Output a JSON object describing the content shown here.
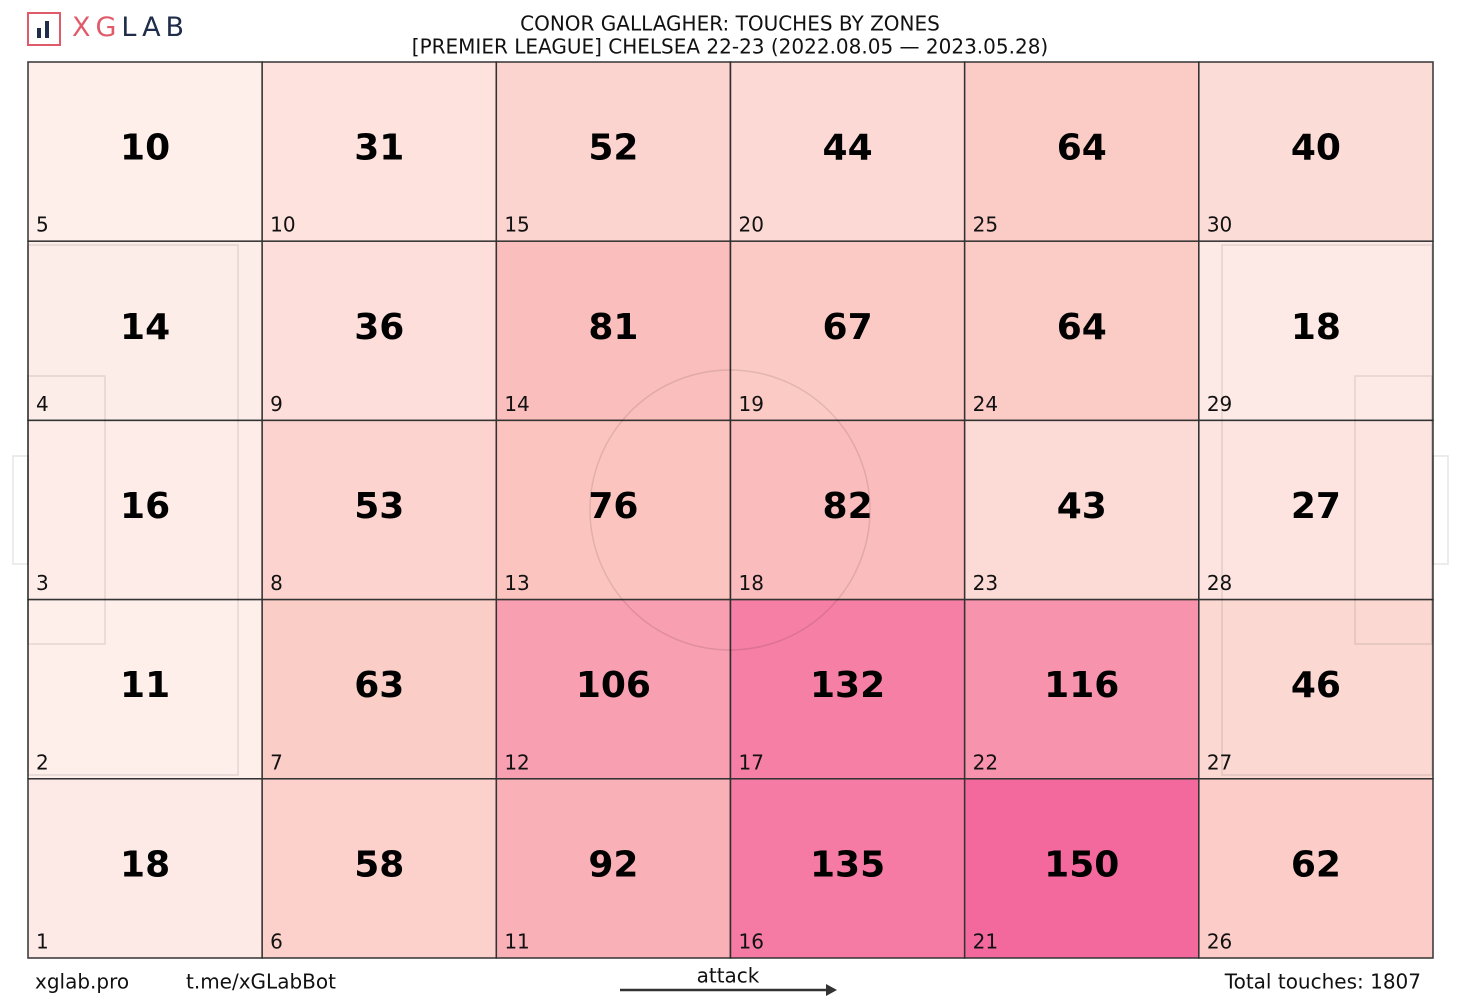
{
  "chart_data": {
    "type": "heatmap",
    "logo": "XGLAB",
    "title": "CONOR GALLAGHER: TOUCHES BY ZONES",
    "subtitle": "[PREMIER LEAGUE] CHELSEA 22-23 (2022.08.05 — 2023.05.28)",
    "values": [
      [
        10,
        31,
        52,
        44,
        64,
        40
      ],
      [
        14,
        36,
        81,
        67,
        64,
        18
      ],
      [
        16,
        53,
        76,
        82,
        43,
        27
      ],
      [
        11,
        63,
        106,
        132,
        116,
        46
      ],
      [
        18,
        58,
        92,
        135,
        150,
        62
      ]
    ],
    "zones": [
      [
        5,
        10,
        15,
        20,
        25,
        30
      ],
      [
        4,
        9,
        14,
        19,
        24,
        29
      ],
      [
        3,
        8,
        13,
        18,
        23,
        28
      ],
      [
        2,
        7,
        12,
        17,
        22,
        27
      ],
      [
        1,
        6,
        11,
        16,
        21,
        26
      ]
    ],
    "colorscale": [
      "#fef6f2",
      "#fbc5bf",
      "#f4699d"
    ],
    "footer_left": [
      "xglab.pro",
      "t.me/xGLabBot"
    ],
    "direction_label": "attack",
    "total": "Total touches: 1807"
  }
}
